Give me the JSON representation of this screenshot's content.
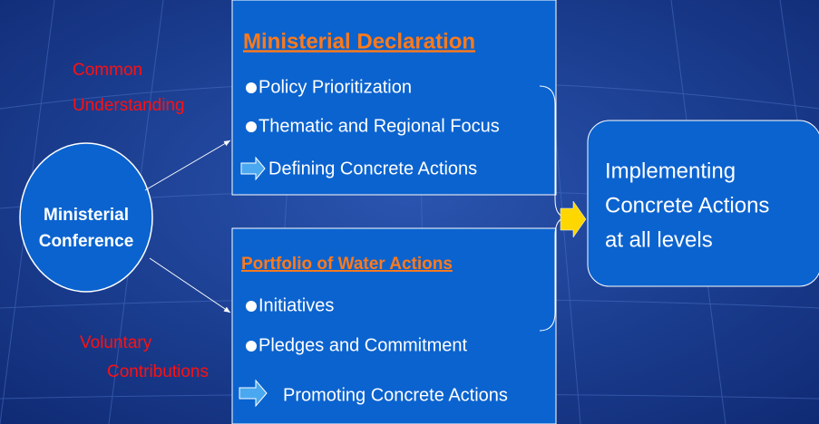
{
  "annotations": [
    {
      "lines": [
        "Common",
        "Understanding"
      ]
    },
    {
      "lines": [
        "Voluntary",
        "Contributions"
      ]
    }
  ],
  "nodes": [
    {
      "lines": [
        "Ministerial",
        "Conference"
      ]
    },
    {
      "title": "Ministerial Declaration",
      "items": [
        "Policy Prioritization",
        "Thematic and Regional Focus",
        "Defining Concrete Actions"
      ]
    },
    {
      "title": "Portfolio of Water Actions",
      "items": [
        "Initiatives",
        "Pledges and Commitment",
        "Promoting Concrete Actions"
      ]
    },
    {
      "lines": [
        "Implementing",
        "Concrete Actions",
        "at all levels"
      ]
    }
  ]
}
